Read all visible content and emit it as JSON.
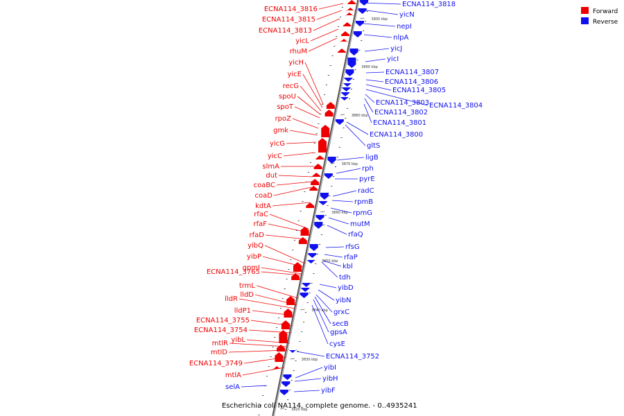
{
  "caption": "Escherichia coli NA114, complete genome. - 0..4935241",
  "legend": [
    {
      "label": "Forward",
      "color": "#ee0000"
    },
    {
      "label": "Reverse",
      "color": "#1010ee"
    }
  ],
  "colors": {
    "forward": "#ee0000",
    "reverse": "#1010ee",
    "axis": "#999999"
  },
  "ticks": [
    "3900 kbp",
    "3890 kbp",
    "3880 kbp",
    "3870 kbp",
    "3860 kbp",
    "3850 kbp",
    "3840 kbp",
    "3830 kbp",
    "3820 kbp"
  ],
  "forward_labels": [
    "ECNA114_3816",
    "ECNA114_3815",
    "ECNA114_3813",
    "yicL",
    "rhuM",
    "yicH",
    "yicE",
    "recG",
    "spoU",
    "spoT",
    "rpoZ",
    "gmk",
    "yicG",
    "yicC",
    "slmA",
    "dut",
    "coaBC",
    "coaD",
    "kdtA",
    "rfaC",
    "rfaF",
    "rfaD",
    "yibQ",
    "yibP",
    "gpmI",
    "ECNA114_3765",
    "trmL",
    "lldD",
    "lldR",
    "lldP1",
    "ECNA114_3755",
    "ECNA114_3754",
    "yibL",
    "mtlR",
    "mtlD",
    "ECNA114_3749",
    "mtlA"
  ],
  "reverse_labels": [
    "ECNA114_3818",
    "yicN",
    "nepI",
    "nlpA",
    "yicJ",
    "yicI",
    "ECNA114_3807",
    "ECNA114_3806",
    "ECNA114_3805",
    "ECNA114_3804",
    "ECNA114_3803",
    "ECNA114_3802",
    "ECNA114_3801",
    "ECNA114_3800",
    "gltS",
    "ligB",
    "rph",
    "pyrE",
    "radC",
    "rpmB",
    "rpmG",
    "mutM",
    "rfaQ",
    "rfsG",
    "rfaP",
    "kbl",
    "tdh",
    "yibD",
    "yibN",
    "grxC",
    "secB",
    "gpsA",
    "cysE",
    "ECNA114_3752",
    "yibI",
    "yibH",
    "yibF",
    "selA"
  ]
}
